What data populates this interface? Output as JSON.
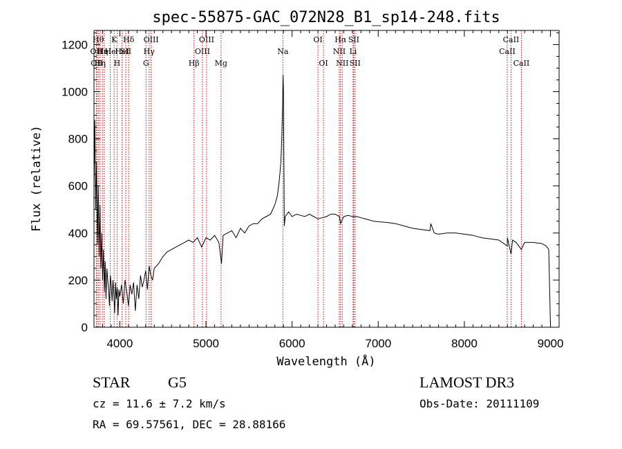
{
  "chart_data": {
    "type": "line",
    "title": "spec-55875-GAC_072N28_B1_sp14-248.fits",
    "xlabel": "Wavelength (Å)",
    "ylabel": "Flux (relative)",
    "xlim": [
      3700,
      9100
    ],
    "ylim": [
      0,
      1260
    ],
    "xticks": [
      4000,
      5000,
      6000,
      7000,
      8000,
      9000
    ],
    "yticks": [
      0,
      200,
      400,
      600,
      800,
      1000,
      1200
    ],
    "grid": false,
    "series": [
      {
        "x": [
          3700,
          3710,
          3720,
          3730,
          3740,
          3750,
          3760,
          3770,
          3780,
          3790,
          3800,
          3810,
          3820,
          3830,
          3840,
          3850,
          3860,
          3870,
          3880,
          3890,
          3900,
          3910,
          3920,
          3930,
          3940,
          3950,
          3960,
          3970,
          3980,
          3990,
          4000,
          4020,
          4040,
          4060,
          4080,
          4100,
          4120,
          4140,
          4160,
          4180,
          4200,
          4220,
          4240,
          4260,
          4280,
          4300,
          4320,
          4340,
          4360,
          4380,
          4400,
          4450,
          4500,
          4550,
          4600,
          4650,
          4700,
          4750,
          4800,
          4850,
          4900,
          4950,
          5000,
          5050,
          5100,
          5150,
          5180,
          5200,
          5250,
          5300,
          5350,
          5400,
          5450,
          5500,
          5550,
          5600,
          5650,
          5700,
          5750,
          5800,
          5830,
          5850,
          5870,
          5880,
          5890,
          5895,
          5900,
          5905,
          5910,
          5920,
          5940,
          5960,
          6000,
          6050,
          6100,
          6150,
          6200,
          6250,
          6300,
          6350,
          6400,
          6450,
          6500,
          6550,
          6563,
          6600,
          6650,
          6700,
          6750,
          6800,
          6850,
          6900,
          6950,
          7000,
          7100,
          7200,
          7300,
          7400,
          7500,
          7600,
          7610,
          7650,
          7700,
          7800,
          7900,
          8000,
          8100,
          8200,
          8300,
          8400,
          8498,
          8500,
          8542,
          8560,
          8600,
          8662,
          8700,
          8800,
          8900,
          8950,
          8980,
          9000
        ],
        "values": [
          600,
          880,
          500,
          700,
          350,
          600,
          300,
          520,
          250,
          400,
          200,
          330,
          150,
          280,
          120,
          250,
          200,
          160,
          90,
          220,
          180,
          110,
          200,
          140,
          60,
          190,
          120,
          170,
          50,
          160,
          130,
          180,
          100,
          200,
          150,
          90,
          180,
          140,
          190,
          70,
          180,
          120,
          220,
          170,
          200,
          240,
          160,
          260,
          220,
          200,
          250,
          270,
          300,
          320,
          330,
          340,
          350,
          360,
          370,
          360,
          380,
          340,
          380,
          370,
          390,
          360,
          270,
          390,
          400,
          410,
          380,
          420,
          400,
          430,
          440,
          440,
          460,
          470,
          480,
          520,
          560,
          620,
          700,
          800,
          950,
          1070,
          1000,
          700,
          430,
          470,
          480,
          490,
          470,
          480,
          475,
          470,
          480,
          470,
          460,
          465,
          470,
          480,
          480,
          470,
          440,
          470,
          475,
          470,
          470,
          465,
          460,
          455,
          450,
          448,
          445,
          440,
          430,
          420,
          415,
          410,
          440,
          400,
          395,
          400,
          400,
          395,
          390,
          380,
          375,
          370,
          345,
          380,
          310,
          370,
          360,
          330,
          360,
          360,
          355,
          345,
          330,
          5
        ]
      }
    ],
    "line_markers": [
      {
        "wavelength": 3727,
        "label": "OII",
        "row": 1
      },
      {
        "wavelength": 3733,
        "label": "OII",
        "row": 2
      },
      {
        "wavelength": 3750,
        "label": "Hθ",
        "row": 0
      },
      {
        "wavelength": 3771,
        "label": "Hη",
        "row": 2
      },
      {
        "wavelength": 3798,
        "label": "Hη",
        "row": 1
      },
      {
        "wavelength": 3820,
        "label": "HeI",
        "row": 1
      },
      {
        "wavelength": 3889,
        "label": "He",
        "row": 1
      },
      {
        "wavelength": 3934,
        "label": "K",
        "row": 0
      },
      {
        "wavelength": 3968,
        "label": "H",
        "row": 2
      },
      {
        "wavelength": 4026,
        "label": "HeI",
        "row": 1
      },
      {
        "wavelength": 4069,
        "label": "SII",
        "row": 1
      },
      {
        "wavelength": 4102,
        "label": "Hδ",
        "row": 0
      },
      {
        "wavelength": 4304,
        "label": "G",
        "row": 2
      },
      {
        "wavelength": 4340,
        "label": "Hγ",
        "row": 1
      },
      {
        "wavelength": 4363,
        "label": "OIII",
        "row": 0
      },
      {
        "wavelength": 4861,
        "label": "Hβ",
        "row": 2
      },
      {
        "wavelength": 4959,
        "label": "OIII",
        "row": 1
      },
      {
        "wavelength": 5007,
        "label": "OIII",
        "row": 0
      },
      {
        "wavelength": 5175,
        "label": "Mg",
        "row": 2
      },
      {
        "wavelength": 5893,
        "label": "Na",
        "row": 1
      },
      {
        "wavelength": 6300,
        "label": "OI",
        "row": 0
      },
      {
        "wavelength": 6364,
        "label": "OI",
        "row": 2
      },
      {
        "wavelength": 6548,
        "label": "NII",
        "row": 1
      },
      {
        "wavelength": 6563,
        "label": "Hα",
        "row": 0
      },
      {
        "wavelength": 6583,
        "label": "NII",
        "row": 2
      },
      {
        "wavelength": 6708,
        "label": "Li",
        "row": 1
      },
      {
        "wavelength": 6716,
        "label": "SII",
        "row": 0
      },
      {
        "wavelength": 6731,
        "label": "SII",
        "row": 2
      },
      {
        "wavelength": 8498,
        "label": "CaII",
        "row": 1
      },
      {
        "wavelength": 8542,
        "label": "CaII",
        "row": 0
      },
      {
        "wavelength": 8662,
        "label": "CaII",
        "row": 2
      }
    ],
    "marker_color": "#cc0000"
  },
  "info": {
    "object_class": "STAR",
    "subclass": "G5",
    "survey": "LAMOST DR3",
    "cz": "cz = 11.6 ± 7.2 km/s",
    "obs_date": "Obs-Date: 20111109",
    "coords": "RA =  69.57561, DEC =  28.88166"
  }
}
